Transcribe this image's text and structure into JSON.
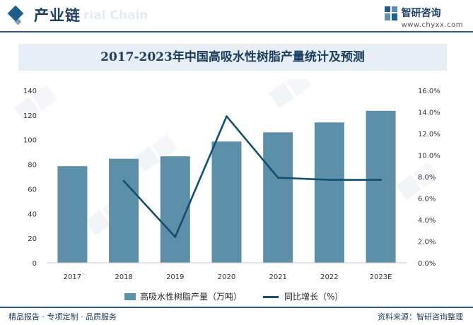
{
  "header": {
    "section_title": "产业链",
    "watermark_text": "rial Chain",
    "brand_name": "智研咨询",
    "brand_url": "www.chyxx.com"
  },
  "colors": {
    "bar": "#5e8fa8",
    "line": "#124f6e",
    "title": "#1c3f60",
    "title_bg": "#e8eef6"
  },
  "chart_data": {
    "type": "bar",
    "title": "2017-2023年中国高吸水性树脂产量统计及预测",
    "categories": [
      "2017",
      "2018",
      "2019",
      "2020",
      "2021",
      "2022",
      "2023E"
    ],
    "series": [
      {
        "name": "高吸水性树脂产量（万吨）",
        "type": "bar",
        "axis": "left",
        "values": [
          78.5,
          84.5,
          86.5,
          98.5,
          106.0,
          114.0,
          123.5
        ]
      },
      {
        "name": "同比增长（%）",
        "type": "line",
        "axis": "right",
        "values": [
          null,
          7.6,
          2.4,
          13.6,
          7.9,
          7.7,
          7.7
        ]
      }
    ],
    "y_left": {
      "min": 0,
      "max": 140,
      "step": 20,
      "ticks": [
        "0",
        "20",
        "40",
        "60",
        "80",
        "100",
        "120",
        "140"
      ]
    },
    "y_right": {
      "min": 0,
      "max": 16,
      "step": 2,
      "ticks": [
        "0.0%",
        "2.0%",
        "4.0%",
        "6.0%",
        "8.0%",
        "10.0%",
        "12.0%",
        "14.0%",
        "16.0%"
      ]
    },
    "grid": false,
    "legend_position": "bottom"
  },
  "footer": {
    "left_text": "精品报告 · 专项定制 · 品质服务",
    "right_text": "资料来源：智研咨询整理"
  }
}
